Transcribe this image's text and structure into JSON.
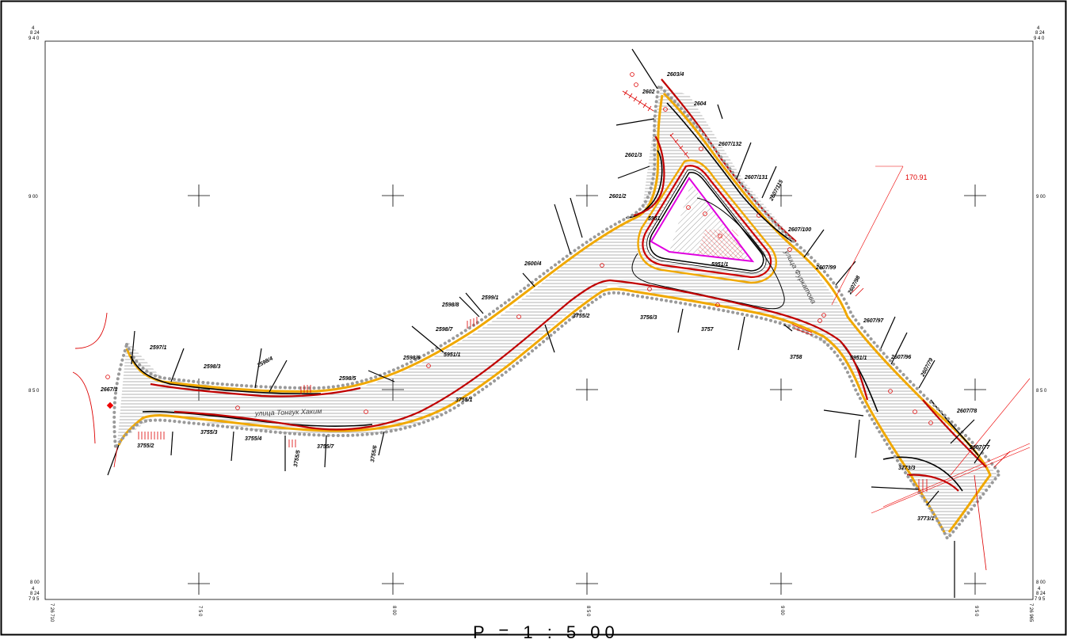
{
  "scale_label": "P = 1 : 5 00",
  "annotation_value": "170.91",
  "street_labels": [
    "улица Тонгук Хаким",
    "улица Фуркатова"
  ],
  "corner_labels": {
    "top_left": [
      "4",
      "8 24",
      "9 4 0"
    ],
    "top_right": [
      "4",
      "8 24",
      "9 4 0"
    ],
    "bottom_left": [
      "8 00",
      "4",
      "8 24",
      "7 9 5"
    ],
    "bottom_right": [
      "8 00",
      "4",
      "8 24",
      "7 9 5"
    ],
    "bottom_left_rotated": "7 26 710",
    "bottom_right_rotated": "7 26 965"
  },
  "y_ticks": [
    "9 00",
    "8 5 0"
  ],
  "x_ticks": [
    "7 5 0",
    "8 00",
    "8 5 0",
    "9 00",
    "9 5 0"
  ],
  "parcels": [
    {
      "id": "p1",
      "text": "2603/4"
    },
    {
      "id": "p2",
      "text": "2602"
    },
    {
      "id": "p3",
      "text": "2604"
    },
    {
      "id": "p4",
      "text": "2607/132"
    },
    {
      "id": "p5",
      "text": "2601/3"
    },
    {
      "id": "p6",
      "text": "2607/131"
    },
    {
      "id": "p7",
      "text": "2607/115"
    },
    {
      "id": "p8",
      "text": "2601/2"
    },
    {
      "id": "p9",
      "text": "5951"
    },
    {
      "id": "p10",
      "text": "2607/100"
    },
    {
      "id": "p11",
      "text": "2600/4"
    },
    {
      "id": "p12",
      "text": "2607/99"
    },
    {
      "id": "p13",
      "text": "2607/98"
    },
    {
      "id": "p14",
      "text": "2599/1"
    },
    {
      "id": "p15",
      "text": "2598/8"
    },
    {
      "id": "p16",
      "text": "2598/7"
    },
    {
      "id": "p17",
      "text": "3755/2"
    },
    {
      "id": "p18",
      "text": "3756/3"
    },
    {
      "id": "p19",
      "text": "3757"
    },
    {
      "id": "p20",
      "text": "2607/97"
    },
    {
      "id": "p21",
      "text": "2597/1"
    },
    {
      "id": "p22",
      "text": "2598/3"
    },
    {
      "id": "p23",
      "text": "2598/4"
    },
    {
      "id": "p24",
      "text": "2598/6"
    },
    {
      "id": "p25",
      "text": "5951/1"
    },
    {
      "id": "p26",
      "text": "3758"
    },
    {
      "id": "p27",
      "text": "5951/1"
    },
    {
      "id": "p28",
      "text": "2607/96"
    },
    {
      "id": "p29",
      "text": "2607/79"
    },
    {
      "id": "p30",
      "text": "2598/5"
    },
    {
      "id": "p31",
      "text": "2667/1"
    },
    {
      "id": "p32",
      "text": "3755/1"
    },
    {
      "id": "p33",
      "text": "2607/78"
    },
    {
      "id": "p34",
      "text": "3755/2"
    },
    {
      "id": "p35",
      "text": "3755/3"
    },
    {
      "id": "p36",
      "text": "3755/4"
    },
    {
      "id": "p37",
      "text": "3755/5"
    },
    {
      "id": "p38",
      "text": "3755/7"
    },
    {
      "id": "p39",
      "text": "3755/6"
    },
    {
      "id": "p40",
      "text": "2607/77"
    },
    {
      "id": "p41",
      "text": "3773/3"
    },
    {
      "id": "p42",
      "text": "3773/1"
    },
    {
      "id": "p43",
      "text": "5951/1"
    }
  ]
}
